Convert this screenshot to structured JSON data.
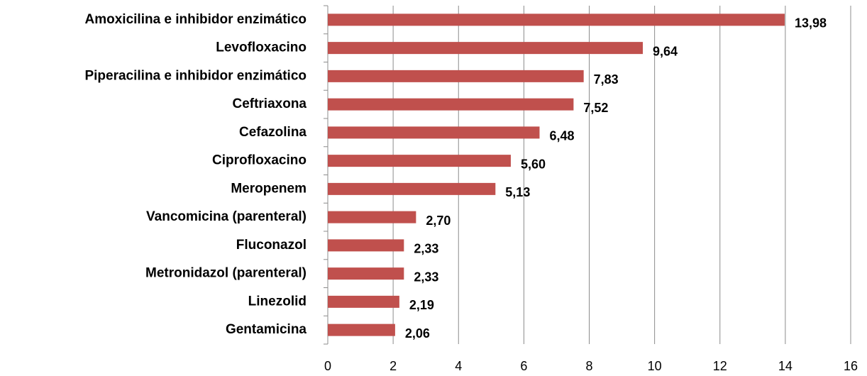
{
  "chart_data": {
    "type": "barh",
    "categories": [
      "Amoxicilina e inhibidor enzimático",
      "Levofloxacino",
      "Piperacilina e inhibidor enzimático",
      "Ceftriaxona",
      "Cefazolina",
      "Ciprofloxacino",
      "Meropenem",
      "Vancomicina (parenteral)",
      "Fluconazol",
      "Metronidazol (parenteral)",
      "Linezolid",
      "Gentamicina"
    ],
    "values": [
      13.98,
      9.64,
      7.83,
      7.52,
      6.48,
      5.6,
      5.13,
      2.7,
      2.33,
      2.33,
      2.19,
      2.06
    ],
    "value_labels": [
      "13,98",
      "9,64",
      "7,83",
      "7,52",
      "6,48",
      "5,60",
      "5,13",
      "2,70",
      "2,33",
      "2,33",
      "2,19",
      "2,06"
    ],
    "color": "#c0504d",
    "xlim": [
      0,
      16
    ],
    "xticks": [
      0,
      2,
      4,
      6,
      8,
      10,
      12,
      14,
      16
    ],
    "grid": true
  }
}
